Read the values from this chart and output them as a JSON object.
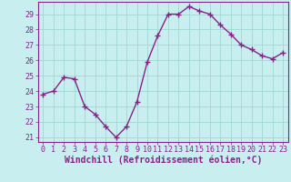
{
  "x": [
    0,
    1,
    2,
    3,
    4,
    5,
    6,
    7,
    8,
    9,
    10,
    11,
    12,
    13,
    14,
    15,
    16,
    17,
    18,
    19,
    20,
    21,
    22,
    23
  ],
  "y": [
    23.8,
    24.0,
    24.9,
    24.8,
    23.0,
    22.5,
    21.7,
    21.0,
    21.7,
    23.3,
    25.9,
    27.6,
    29.0,
    29.0,
    29.5,
    29.2,
    29.0,
    28.3,
    27.7,
    27.0,
    26.7,
    26.3,
    26.1,
    26.5
  ],
  "line_color": "#882288",
  "marker": "+",
  "marker_size": 4,
  "marker_lw": 1.0,
  "bg_color": "#c8eef0",
  "grid_color": "#a0d8d0",
  "xlabel": "Windchill (Refroidissement éolien,°C)",
  "ylim": [
    20.7,
    29.8
  ],
  "xlim": [
    -0.5,
    23.5
  ],
  "yticks": [
    21,
    22,
    23,
    24,
    25,
    26,
    27,
    28,
    29
  ],
  "xticks": [
    0,
    1,
    2,
    3,
    4,
    5,
    6,
    7,
    8,
    9,
    10,
    11,
    12,
    13,
    14,
    15,
    16,
    17,
    18,
    19,
    20,
    21,
    22,
    23
  ],
  "tick_color": "#882288",
  "tick_fontsize": 6.0,
  "xlabel_fontsize": 7.0,
  "line_width": 1.0
}
